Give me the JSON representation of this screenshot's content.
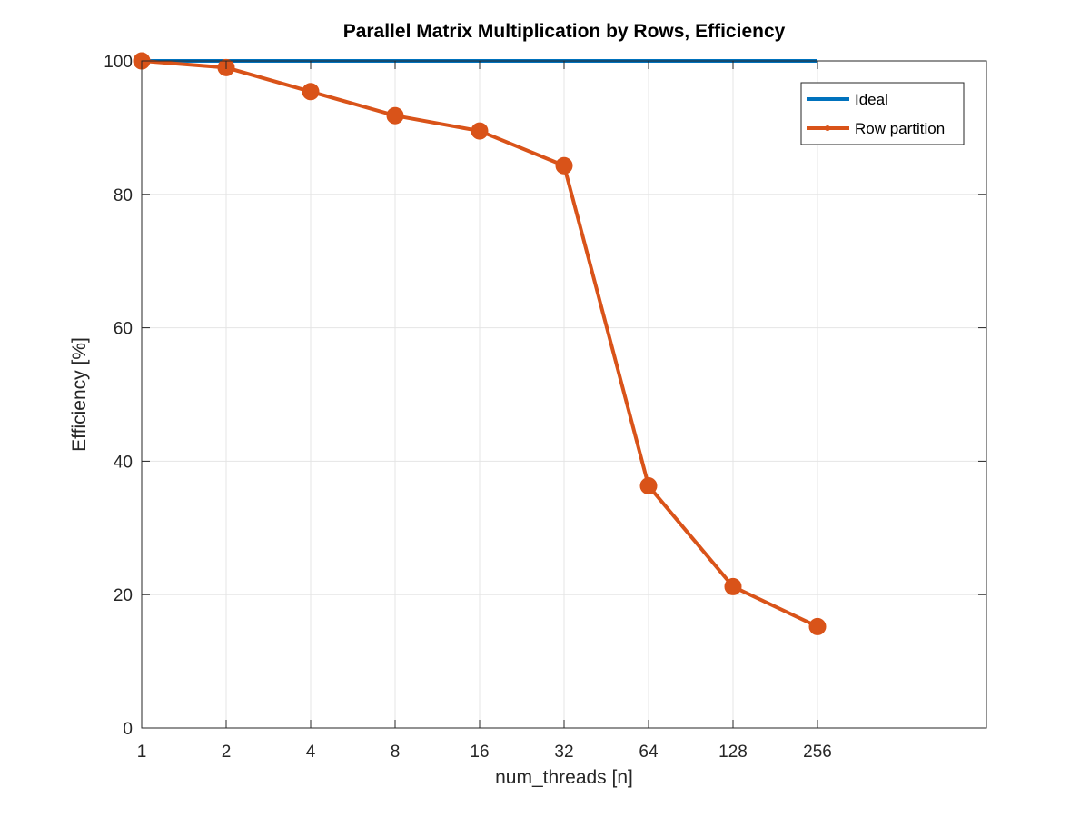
{
  "chart_data": {
    "type": "line",
    "title": "Parallel Matrix Multiplication by Rows, Efficiency",
    "xlabel": "num_threads [n]",
    "ylabel": "Efficiency [%]",
    "x_scale": "log2",
    "x": [
      1,
      2,
      4,
      8,
      16,
      32,
      64,
      128,
      256
    ],
    "x_tick_labels": [
      "1",
      "2",
      "4",
      "8",
      "16",
      "32",
      "64",
      "128",
      "256"
    ],
    "xlim": [
      1,
      1024
    ],
    "ylim": [
      0,
      100
    ],
    "y_ticks": [
      0,
      20,
      40,
      60,
      80,
      100
    ],
    "y_tick_labels": [
      "0",
      "20",
      "40",
      "60",
      "80",
      "100"
    ],
    "grid": true,
    "legend_position": "top-right",
    "series": [
      {
        "name": "Ideal",
        "color": "#0072BD",
        "marker": "none",
        "values": [
          100,
          100,
          100,
          100,
          100,
          100,
          100,
          100,
          100
        ]
      },
      {
        "name": "Row partition",
        "color": "#D95319",
        "marker": "circle",
        "values": [
          100,
          99,
          95.4,
          91.8,
          89.5,
          84.3,
          36.3,
          21.2,
          15.2
        ]
      }
    ]
  }
}
